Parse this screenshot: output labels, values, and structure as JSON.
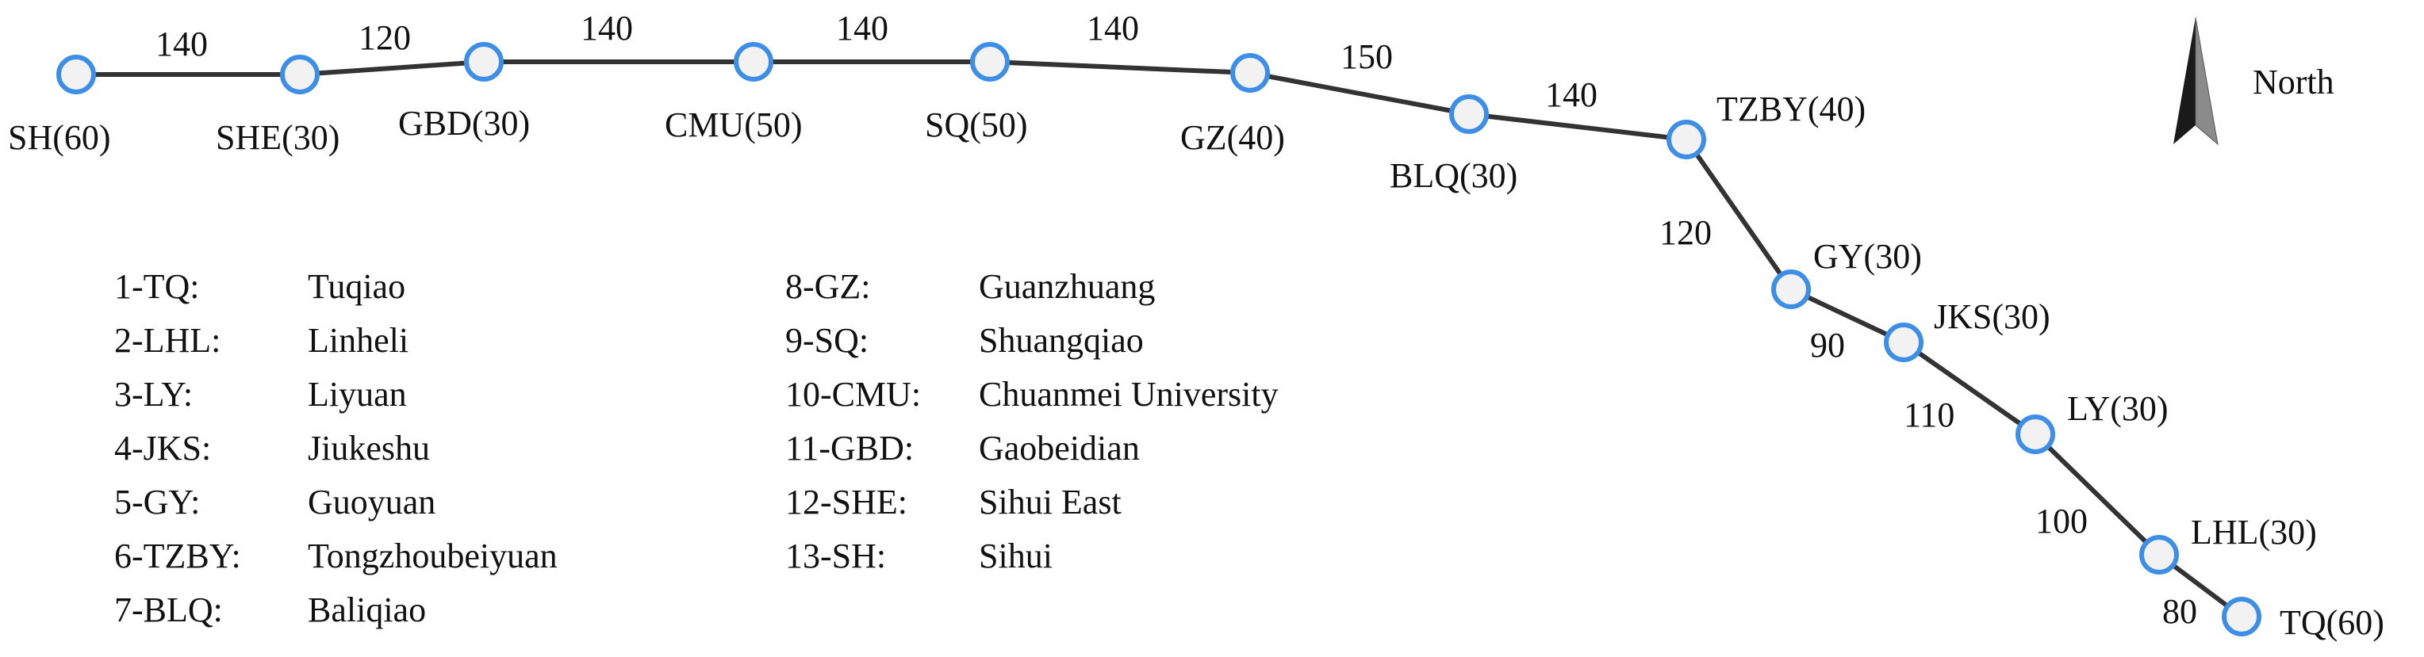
{
  "colors": {
    "station_stroke": "#3d8ee6",
    "station_fill": "#f2f2f2",
    "track": "#333333",
    "text": "#111111"
  },
  "stations": [
    {
      "id": "SH",
      "label": "SH(60)"
    },
    {
      "id": "SHE",
      "label": "SHE(30)"
    },
    {
      "id": "GBD",
      "label": "GBD(30)"
    },
    {
      "id": "CMU",
      "label": "CMU(50)"
    },
    {
      "id": "SQ",
      "label": "SQ(50)"
    },
    {
      "id": "GZ",
      "label": "GZ(40)"
    },
    {
      "id": "BLQ",
      "label": "BLQ(30)"
    },
    {
      "id": "TZBY",
      "label": "TZBY(40)"
    },
    {
      "id": "GY",
      "label": "GY(30)"
    },
    {
      "id": "JKS",
      "label": "JKS(30)"
    },
    {
      "id": "LY",
      "label": "LY(30)"
    },
    {
      "id": "LHL",
      "label": "LHL(30)"
    },
    {
      "id": "TQ",
      "label": "TQ(60)"
    }
  ],
  "segments": [
    "140",
    "120",
    "140",
    "140",
    "140",
    "150",
    "140",
    "120",
    "90",
    "110",
    "100",
    "80"
  ],
  "legend": {
    "column1": [
      {
        "code": "1-TQ:",
        "name": "Tuqiao"
      },
      {
        "code": "2-LHL:",
        "name": "Linheli"
      },
      {
        "code": "3-LY:",
        "name": "Liyuan"
      },
      {
        "code": "4-JKS:",
        "name": "Jiukeshu"
      },
      {
        "code": "5-GY:",
        "name": "Guoyuan"
      },
      {
        "code": "6-TZBY:",
        "name": "Tongzhoubeiyuan"
      },
      {
        "code": "7-BLQ:",
        "name": "Baliqiao"
      }
    ],
    "column2": [
      {
        "code": "8-GZ:",
        "name": "Guanzhuang"
      },
      {
        "code": "9-SQ:",
        "name": "Shuangqiao"
      },
      {
        "code": "10-CMU:",
        "name": "Chuanmei University"
      },
      {
        "code": "11-GBD:",
        "name": "Gaobeidian"
      },
      {
        "code": "12-SHE:",
        "name": "Sihui East"
      },
      {
        "code": "13-SH:",
        "name": "Sihui"
      }
    ]
  },
  "compass": {
    "label": "North",
    "icon": "north-arrow-icon"
  }
}
